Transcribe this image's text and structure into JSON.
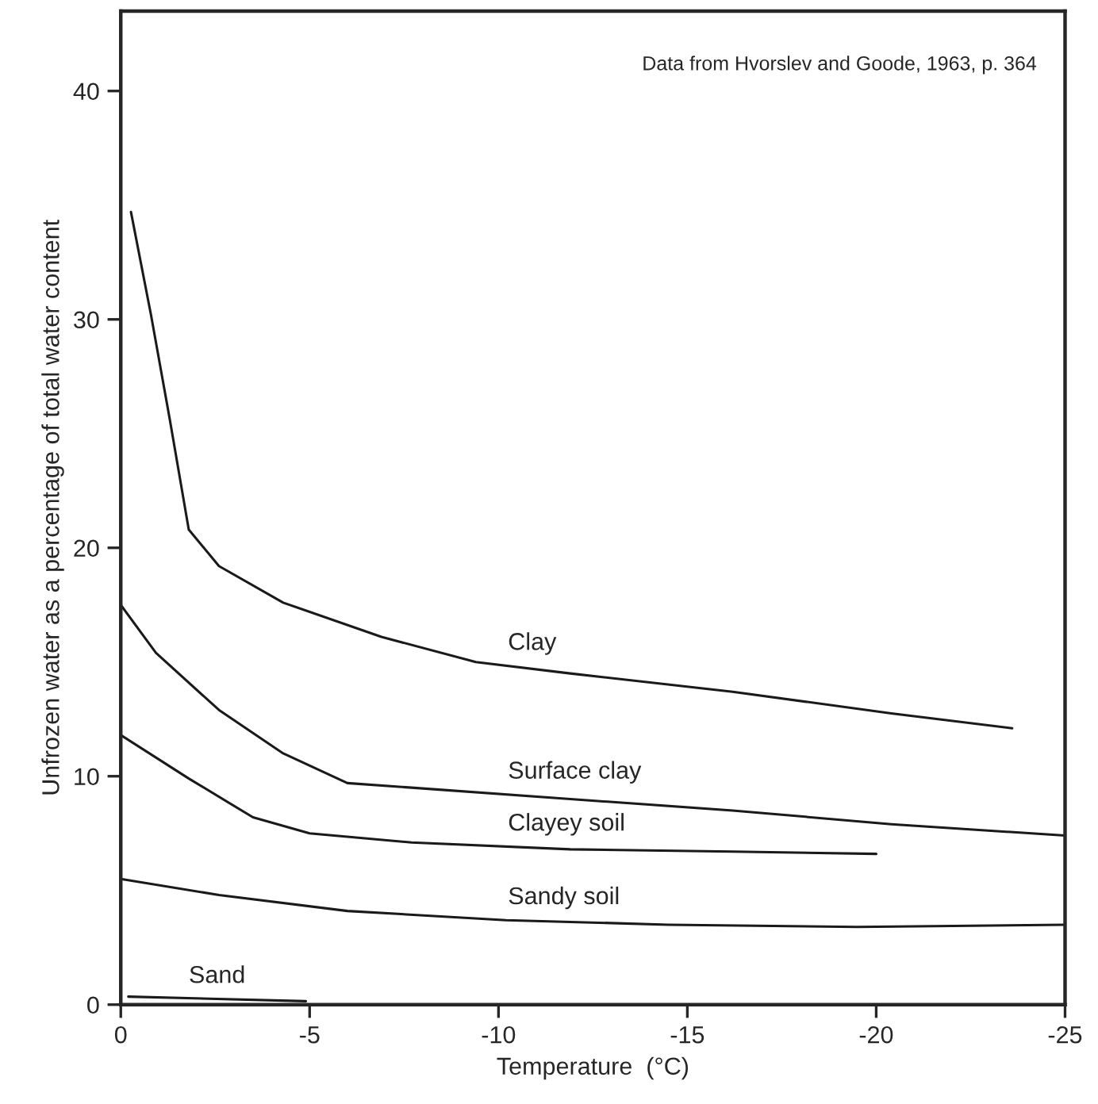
{
  "chart_data": {
    "type": "line",
    "xlabel": "Temperature  (°C)",
    "ylabel": "Unfrozen water as a percentage of total water content",
    "annotations": [
      "Data from Hvorslev and Goode, 1963, p. 364"
    ],
    "xlim": [
      0,
      -25
    ],
    "xticks": [
      0,
      -5,
      -10,
      -15,
      -20,
      -25
    ],
    "ylim": [
      0,
      43.5
    ],
    "yticks": [
      0,
      10,
      20,
      30,
      40
    ],
    "grid": false,
    "legend": false,
    "marker": "none",
    "line_style": "solid",
    "series": [
      {
        "name": "Clay",
        "color": "#1a1a1a",
        "x": [
          -0.27,
          -0.8,
          -1.3,
          -1.8,
          -2.6,
          -4.3,
          -6.9,
          -9.4,
          -11.9,
          -16.2,
          -20.4,
          -23.6
        ],
        "values": [
          34.7,
          30.2,
          25.6,
          20.8,
          19.2,
          17.6,
          16.1,
          15.0,
          14.5,
          13.7,
          12.75,
          12.1
        ]
      },
      {
        "name": "Surface clay",
        "color": "#1a1a1a",
        "x": [
          0,
          -0.93,
          -2.6,
          -4.3,
          -6.0,
          -7.7,
          -11.9,
          -16.2,
          -20.4,
          -25
        ],
        "values": [
          17.5,
          15.4,
          12.9,
          11.0,
          9.7,
          9.5,
          9.0,
          8.5,
          7.9,
          7.4
        ]
      },
      {
        "name": "Clayey soil",
        "color": "#1a1a1a",
        "x": [
          0,
          -1.8,
          -3.5,
          -5.0,
          -7.7,
          -11.9,
          -16.2,
          -20.0
        ],
        "values": [
          11.8,
          9.9,
          8.2,
          7.5,
          7.1,
          6.8,
          6.7,
          6.6
        ]
      },
      {
        "name": "Sandy soil",
        "color": "#1a1a1a",
        "x": [
          0,
          -2.6,
          -6.0,
          -10.2,
          -14.5,
          -19.5,
          -25
        ],
        "values": [
          5.5,
          4.8,
          4.1,
          3.7,
          3.5,
          3.4,
          3.5
        ]
      },
      {
        "name": "Sand",
        "color": "#1a1a1a",
        "x": [
          -0.2,
          -4.9
        ],
        "values": [
          0.35,
          0.15
        ]
      }
    ]
  }
}
